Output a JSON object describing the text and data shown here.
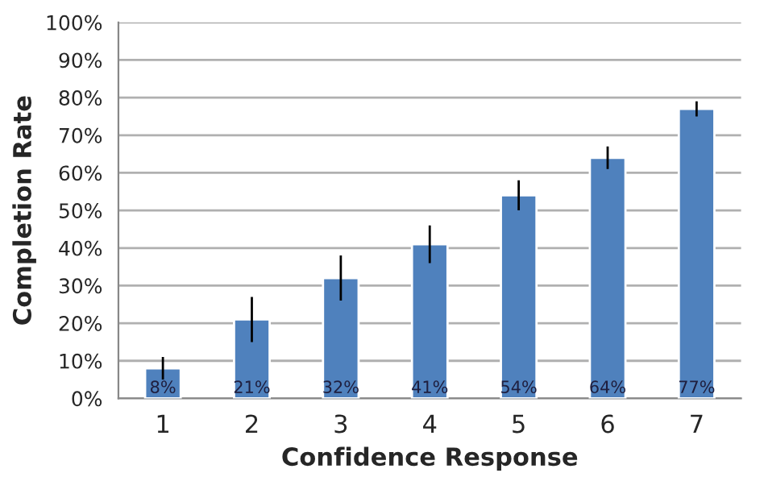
{
  "chart_data": {
    "type": "bar",
    "xlabel": "Confidence Response",
    "ylabel": "Completion Rate",
    "categories": [
      "1",
      "2",
      "3",
      "4",
      "5",
      "6",
      "7"
    ],
    "values": [
      8,
      21,
      32,
      41,
      54,
      64,
      77
    ],
    "errors": [
      3,
      6,
      6,
      5,
      4,
      3,
      2
    ],
    "value_labels": [
      "8%",
      "21%",
      "32%",
      "41%",
      "54%",
      "64%",
      "77%"
    ],
    "color": "#4f81bd",
    "ylim": [
      0,
      100
    ],
    "yticks": [
      {
        "value": 0,
        "label": "0%"
      },
      {
        "value": 10,
        "label": "10%"
      },
      {
        "value": 20,
        "label": "20%"
      },
      {
        "value": 30,
        "label": "30%"
      },
      {
        "value": 40,
        "label": "40%"
      },
      {
        "value": 50,
        "label": "50%"
      },
      {
        "value": 60,
        "label": "60%"
      },
      {
        "value": 70,
        "label": "70%"
      },
      {
        "value": 80,
        "label": "80%"
      },
      {
        "value": 90,
        "label": "90%"
      },
      {
        "value": 100,
        "label": "100%"
      }
    ],
    "grid": "y",
    "legend": false
  }
}
